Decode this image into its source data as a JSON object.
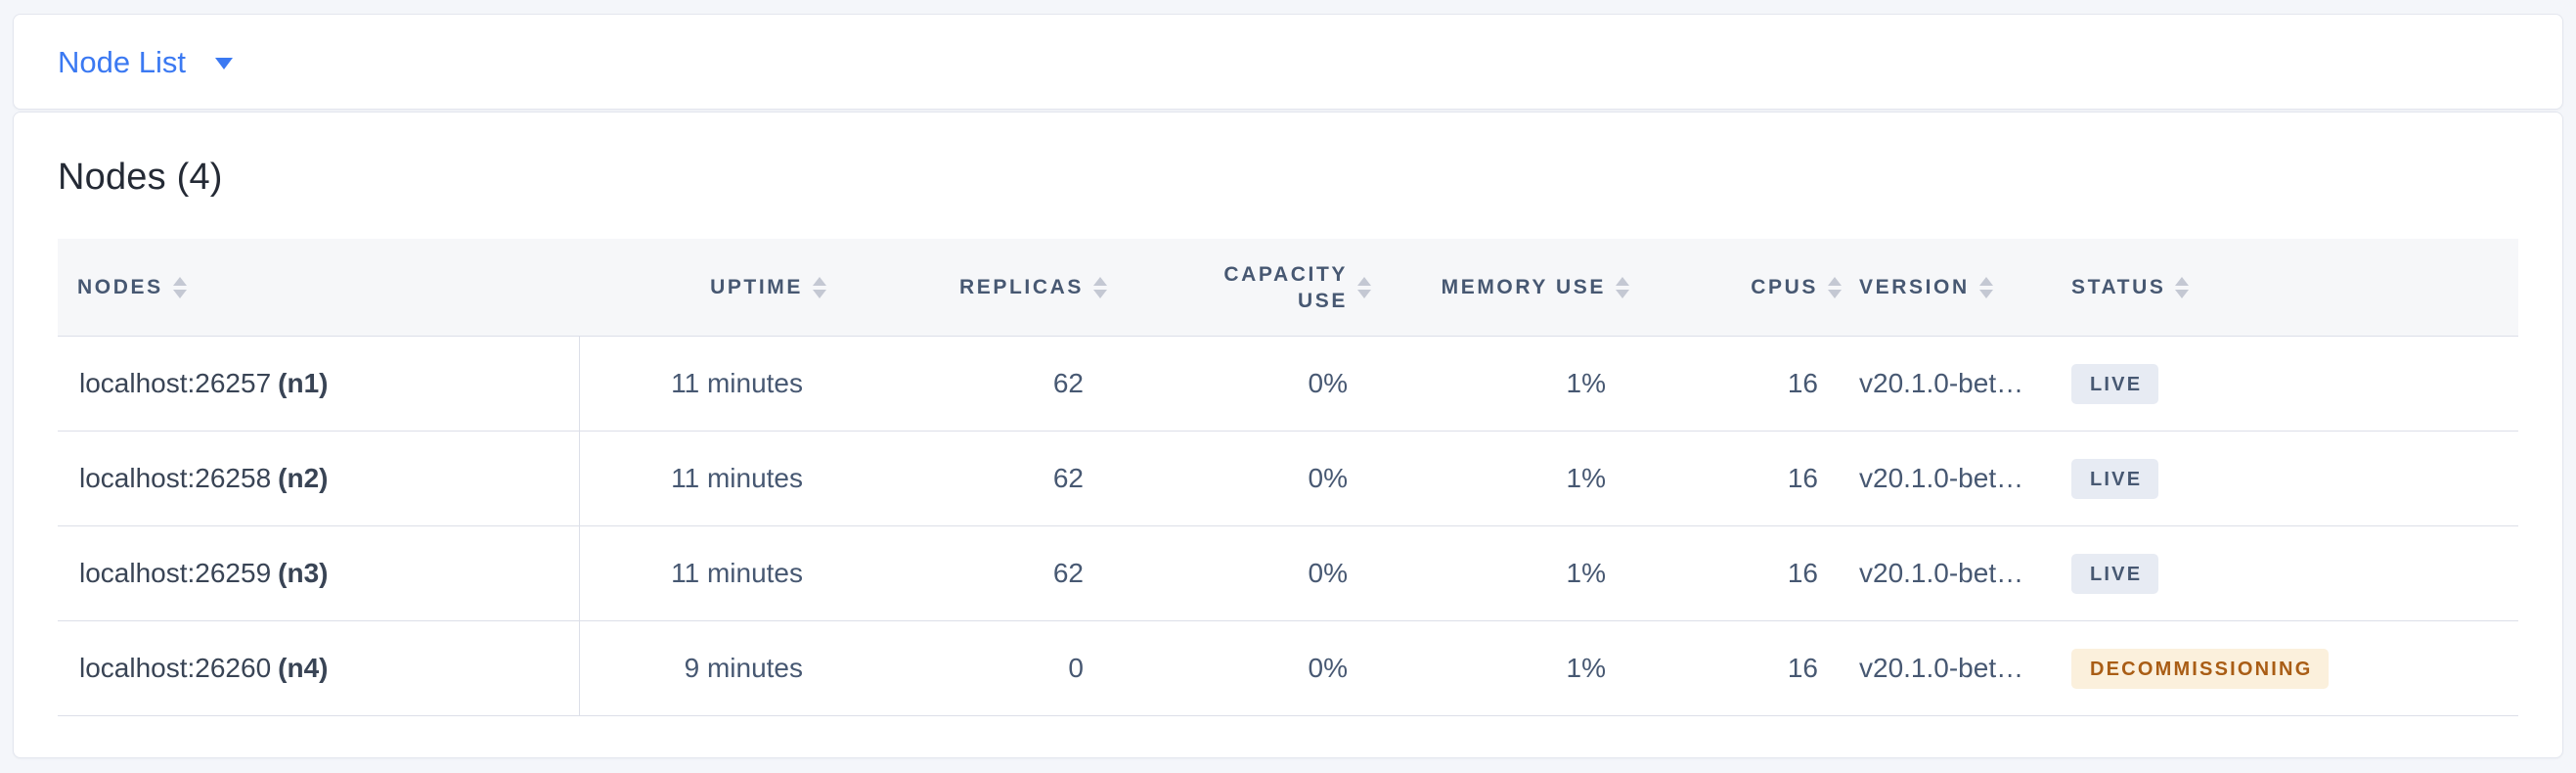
{
  "toolbar": {
    "view_selector_label": "Node List"
  },
  "main": {
    "title": "Nodes (4)"
  },
  "table": {
    "columns": [
      {
        "label": "NODES"
      },
      {
        "label": "UPTIME"
      },
      {
        "label": "REPLICAS"
      },
      {
        "label": "CAPACITY USE"
      },
      {
        "label": "MEMORY USE"
      },
      {
        "label": "CPUS"
      },
      {
        "label": "VERSION"
      },
      {
        "label": "STATUS"
      }
    ],
    "rows": [
      {
        "address": "localhost:26257",
        "name": "(n1)",
        "uptime": "11 minutes",
        "replicas": "62",
        "capacity_use": "0%",
        "memory_use": "1%",
        "cpus": "16",
        "version": "v20.1.0-bet…",
        "status": "LIVE"
      },
      {
        "address": "localhost:26258",
        "name": "(n2)",
        "uptime": "11 minutes",
        "replicas": "62",
        "capacity_use": "0%",
        "memory_use": "1%",
        "cpus": "16",
        "version": "v20.1.0-bet…",
        "status": "LIVE"
      },
      {
        "address": "localhost:26259",
        "name": "(n3)",
        "uptime": "11 minutes",
        "replicas": "62",
        "capacity_use": "0%",
        "memory_use": "1%",
        "cpus": "16",
        "version": "v20.1.0-bet…",
        "status": "LIVE"
      },
      {
        "address": "localhost:26260",
        "name": "(n4)",
        "uptime": "9 minutes",
        "replicas": "0",
        "capacity_use": "0%",
        "memory_use": "1%",
        "cpus": "16",
        "version": "v20.1.0-bet…",
        "status": "DECOMMISSIONING"
      }
    ]
  },
  "colors": {
    "accent_blue": "#3b79f2",
    "live_badge_bg": "#e7ebf3",
    "live_badge_text": "#475872",
    "decommissioning_badge_bg": "#fbf0dc",
    "decommissioning_badge_text": "#a95d15",
    "header_bg": "#f6f7f9",
    "page_bg": "#f4f6fa"
  }
}
